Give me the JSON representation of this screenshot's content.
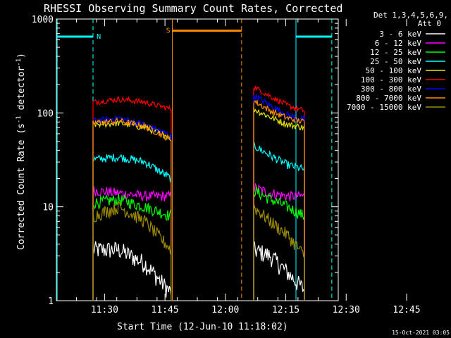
{
  "chart_data": {
    "type": "line",
    "title": "RHESSI Observing Summary Count Rates, Corrected",
    "xlabel": "Start Time (12-Jun-10 11:18:02)",
    "ylabel_main": "Corrected Count Rate (s",
    "ylabel_sup1": "-1",
    "ylabel_mid": " detector",
    "ylabel_sup2": "-1",
    "ylabel_end": ")",
    "yscale": "log",
    "ylim": [
      1,
      1000
    ],
    "xlim_minutes": [
      0,
      70
    ],
    "x_ticks": [
      {
        "label": "11:30",
        "minute": 11.97
      },
      {
        "label": "11:45",
        "minute": 26.97
      },
      {
        "label": "12:00",
        "minute": 41.97
      },
      {
        "label": "12:15",
        "minute": 56.97
      },
      {
        "label": "12:30",
        "minute": 71.97
      },
      {
        "label": "12:45",
        "minute": 86.97
      }
    ],
    "y_ticks": [
      {
        "label": "1",
        "value": 1
      },
      {
        "label": "10",
        "value": 10
      },
      {
        "label": "100",
        "value": 100
      },
      {
        "label": "1000",
        "value": 1000
      }
    ],
    "detector_info": [
      "Det 1,3,4,5,6,9,",
      "Att 0"
    ],
    "series": [
      {
        "name": "3 - 6 keV",
        "color": "#ffffff",
        "seg1": [
          3.5,
          3.5,
          2.5,
          1.2
        ],
        "seg2": [
          3.5,
          3.0,
          2.0,
          1.3
        ]
      },
      {
        "name": "6 - 12 keV",
        "color": "#ff00ff",
        "seg1": [
          15,
          14,
          13,
          13
        ],
        "seg2": [
          16,
          14,
          13,
          13
        ]
      },
      {
        "name": "12 - 25 keV",
        "color": "#00ff00",
        "seg1": [
          11,
          12,
          10,
          8
        ],
        "seg2": [
          15,
          12,
          10,
          8
        ]
      },
      {
        "name": "25 - 50 keV",
        "color": "#00ffff",
        "seg1": [
          32,
          34,
          30,
          20
        ],
        "seg2": [
          45,
          35,
          28,
          25
        ]
      },
      {
        "name": "50 - 100 keV",
        "color": "#e6e600",
        "seg1": [
          75,
          78,
          70,
          55
        ],
        "seg2": [
          110,
          90,
          75,
          70
        ]
      },
      {
        "name": "100 - 300 keV",
        "color": "#ff0000",
        "seg1": [
          130,
          140,
          130,
          110
        ],
        "seg2": [
          190,
          150,
          120,
          105
        ]
      },
      {
        "name": "300 - 800 keV",
        "color": "#0000ff",
        "seg1": [
          82,
          88,
          75,
          57
        ],
        "seg2": [
          155,
          120,
          95,
          85
        ]
      },
      {
        "name": "800 - 7000 keV",
        "color": "#ff8c00",
        "seg1": [
          78,
          82,
          72,
          52
        ],
        "seg2": [
          135,
          105,
          88,
          80
        ]
      },
      {
        "name": "7000 - 15000 keV",
        "color": "#9b8a00",
        "seg1": [
          8,
          10,
          7,
          3.5
        ],
        "seg2": [
          10,
          7,
          5,
          3
        ]
      }
    ],
    "segments_minutes": {
      "seg1": [
        9.1,
        28.5
      ],
      "seg2": [
        49.0,
        61.6
      ]
    },
    "flags": [
      {
        "label": "N",
        "color": "#00ffff",
        "level": 650,
        "ranges": [
          [
            0.2,
            9.1
          ],
          [
            59.5,
            68.4
          ]
        ],
        "dashed_at": [
          9.1,
          68.4
        ],
        "solid_at": [
          0.2,
          59.5
        ]
      },
      {
        "label": "S",
        "color": "#ff8c00",
        "level": 750,
        "ranges": [
          [
            28.8,
            46.0
          ]
        ],
        "solid_at": [
          28.8
        ],
        "dashed_at": [
          46.0
        ]
      }
    ],
    "date_stamp": "15-Oct-2021 03:05"
  }
}
